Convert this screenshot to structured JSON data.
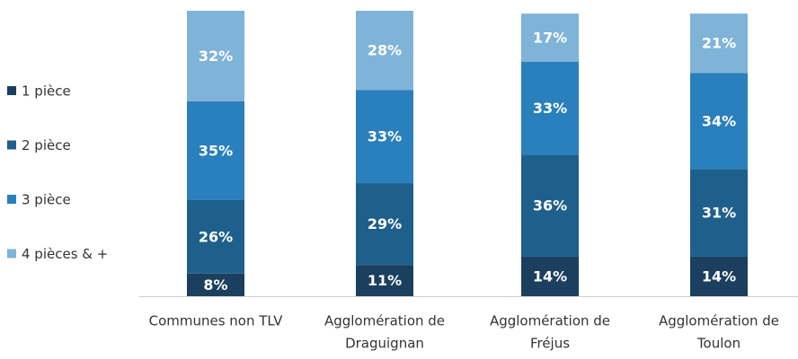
{
  "chart_data": {
    "type": "stacked_bar",
    "categories": [
      [
        "Communes non TLV"
      ],
      [
        "Agglomération de",
        "Draguignan"
      ],
      [
        "Agglomération de",
        "Fréjus"
      ],
      [
        "Agglomération de",
        "Toulon"
      ]
    ],
    "series": [
      {
        "name": "1 pièce",
        "color": "#1b3f5e",
        "values": [
          8,
          11,
          14,
          14
        ],
        "value_labels": [
          "8%",
          "11%",
          "14%",
          "14%"
        ]
      },
      {
        "name": "2 pièce",
        "color": "#1f5f8b",
        "values": [
          26,
          29,
          36,
          31
        ],
        "value_labels": [
          "26%",
          "29%",
          "36%",
          "31%"
        ]
      },
      {
        "name": "3 pièce",
        "color": "#2a7fbd",
        "values": [
          35,
          33,
          33,
          34
        ],
        "value_labels": [
          "35%",
          "33%",
          "33%",
          "34%"
        ]
      },
      {
        "name": "4 pièces & +",
        "color": "#7fb3d8",
        "values": [
          32,
          28,
          17,
          21
        ],
        "value_labels": [
          "32%",
          "28%",
          "17%",
          "21%"
        ]
      }
    ],
    "legend": "left"
  }
}
